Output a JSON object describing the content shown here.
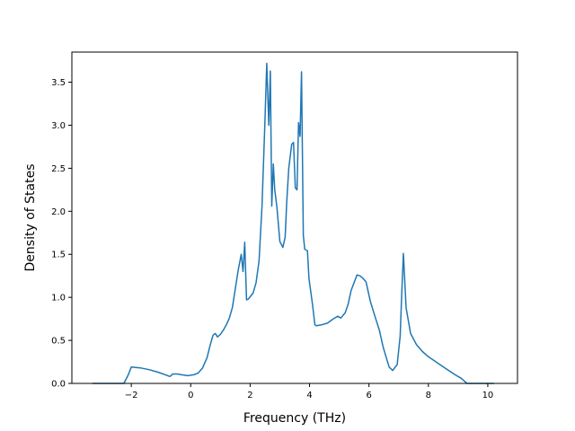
{
  "chart_data": {
    "type": "line",
    "title": "",
    "xlabel": "Frequency (THz)",
    "ylabel": "Density of States",
    "xlim": [
      -4.0,
      11.0
    ],
    "ylim": [
      0.0,
      3.85
    ],
    "grid": false,
    "line_color": "#1f77b4",
    "x_ticks": [
      -2,
      0,
      2,
      4,
      6,
      8,
      10
    ],
    "x_tick_labels": [
      "−2",
      "0",
      "2",
      "4",
      "6",
      "8",
      "10"
    ],
    "y_ticks": [
      0.0,
      0.5,
      1.0,
      1.5,
      2.0,
      2.5,
      3.0,
      3.5
    ],
    "y_tick_labels": [
      "0.0",
      "0.5",
      "1.0",
      "1.5",
      "2.0",
      "2.5",
      "3.0",
      "3.5"
    ],
    "series": [
      {
        "x": [
          -3.3,
          -2.25,
          -2.1,
          -2.0,
          -1.7,
          -1.4,
          -1.1,
          -0.85,
          -0.7,
          -0.6,
          -0.45,
          -0.3,
          -0.1,
          0.1,
          0.25,
          0.4,
          0.55,
          0.65,
          0.75,
          0.83,
          0.9,
          1.0,
          1.1,
          1.2,
          1.3,
          1.4,
          1.5,
          1.6,
          1.7,
          1.76,
          1.82,
          1.88,
          1.94,
          2.1,
          2.2,
          2.3,
          2.4,
          2.5,
          2.56,
          2.63,
          2.68,
          2.73,
          2.78,
          2.83,
          2.9,
          3.0,
          3.1,
          3.18,
          3.23,
          3.3,
          3.4,
          3.46,
          3.52,
          3.58,
          3.63,
          3.68,
          3.73,
          3.79,
          3.84,
          3.93,
          3.98,
          4.1,
          4.18,
          4.23,
          4.4,
          4.6,
          4.8,
          4.95,
          5.05,
          5.2,
          5.3,
          5.4,
          5.6,
          5.7,
          5.8,
          5.9,
          6.05,
          6.2,
          6.35,
          6.48,
          6.6,
          6.68,
          6.8,
          6.95,
          7.05,
          7.1,
          7.16,
          7.25,
          7.4,
          7.6,
          7.8,
          8.0,
          8.3,
          8.6,
          8.9,
          9.1,
          9.3,
          10.0,
          10.2
        ],
        "y": [
          0.0,
          0.0,
          0.1,
          0.19,
          0.18,
          0.16,
          0.13,
          0.1,
          0.08,
          0.11,
          0.11,
          0.1,
          0.09,
          0.1,
          0.12,
          0.18,
          0.3,
          0.44,
          0.56,
          0.58,
          0.54,
          0.57,
          0.62,
          0.68,
          0.76,
          0.88,
          1.1,
          1.32,
          1.5,
          1.3,
          1.64,
          0.97,
          0.98,
          1.05,
          1.17,
          1.42,
          2.05,
          3.05,
          3.72,
          3.0,
          3.63,
          2.06,
          2.55,
          2.25,
          2.05,
          1.65,
          1.58,
          1.7,
          2.1,
          2.5,
          2.78,
          2.8,
          2.27,
          2.25,
          3.03,
          2.87,
          3.62,
          1.72,
          1.56,
          1.54,
          1.22,
          0.92,
          0.68,
          0.67,
          0.68,
          0.7,
          0.75,
          0.78,
          0.76,
          0.82,
          0.92,
          1.08,
          1.26,
          1.25,
          1.22,
          1.18,
          0.95,
          0.78,
          0.62,
          0.42,
          0.28,
          0.19,
          0.15,
          0.22,
          0.55,
          1.0,
          1.51,
          0.88,
          0.58,
          0.45,
          0.37,
          0.31,
          0.24,
          0.17,
          0.1,
          0.06,
          0.0,
          0.0,
          0.0
        ]
      }
    ]
  }
}
